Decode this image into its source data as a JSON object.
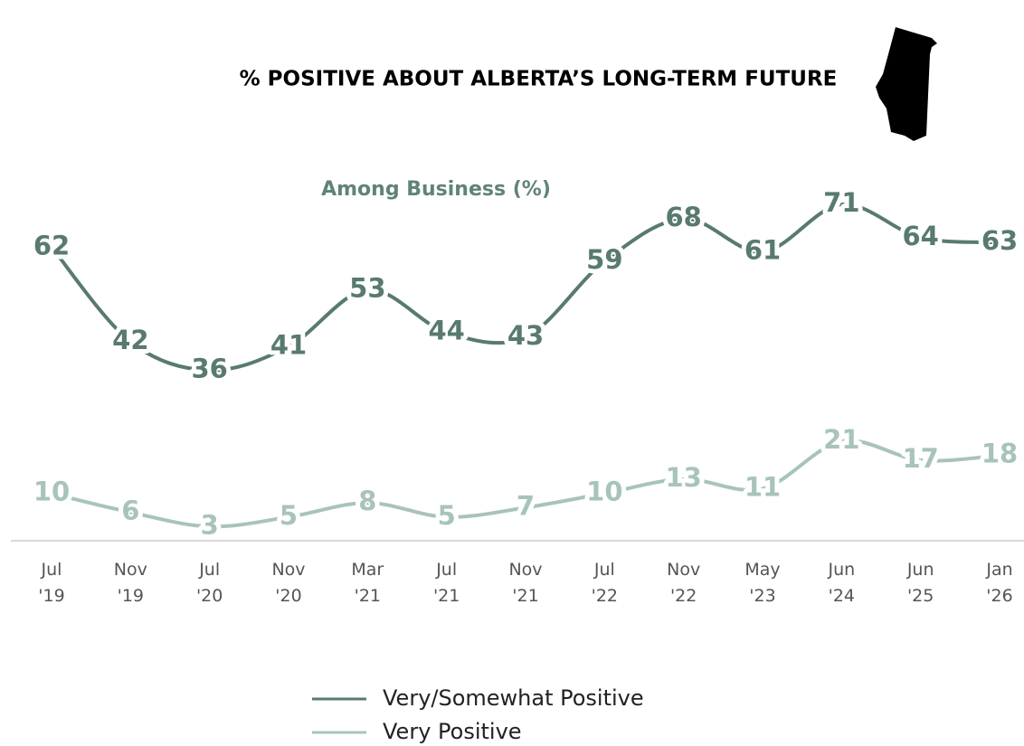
{
  "chart_data": {
    "type": "line",
    "title": "% POSITIVE ABOUT ALBERTA’S LONG-TERM FUTURE",
    "subtitle": "Among Business (%)",
    "categories": [
      "Jul '19",
      "Nov '19",
      "Jul '20",
      "Nov '20",
      "Mar '21",
      "Jul '21",
      "Nov '21",
      "Jul '22",
      "Nov '22",
      "May '23",
      "Jun '24",
      "Jun '25",
      "Jan '26"
    ],
    "series": [
      {
        "name": "Very/Somewhat Positive",
        "color": "#587a70",
        "values": [
          62,
          42,
          36,
          41,
          53,
          44,
          43,
          59,
          68,
          61,
          71,
          64,
          63
        ]
      },
      {
        "name": "Very Positive",
        "color": "#a8c3bc",
        "values": [
          10,
          6,
          3,
          5,
          8,
          5,
          7,
          10,
          13,
          11,
          21,
          17,
          18
        ]
      }
    ],
    "ylim": [
      0,
      80
    ]
  }
}
